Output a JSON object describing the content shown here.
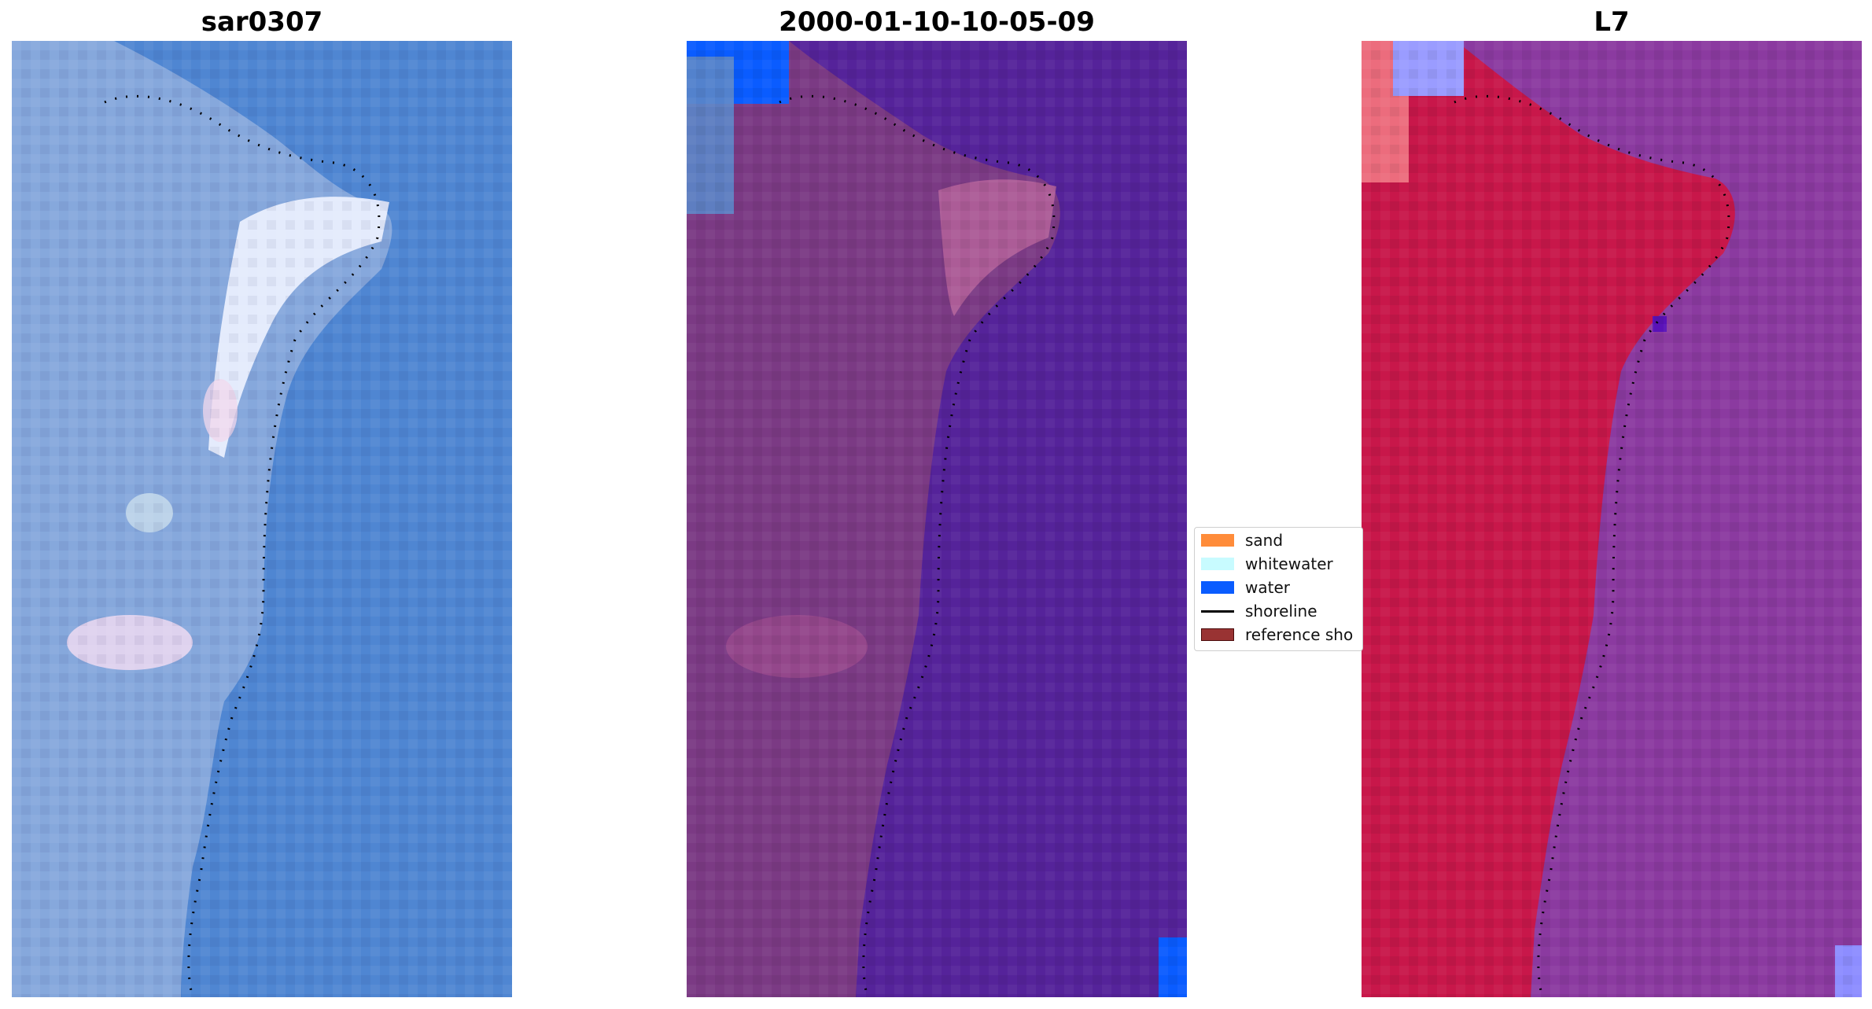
{
  "panels": [
    {
      "title": "sar0307",
      "style": "sar"
    },
    {
      "title": "2000-01-10-10-05-09",
      "style": "classified"
    },
    {
      "title": "L7",
      "style": "index"
    }
  ],
  "legend": {
    "items": [
      {
        "label": "sand",
        "color": "#ff8c3a",
        "type": "patch"
      },
      {
        "label": "whitewater",
        "color": "#c8fbff",
        "type": "patch"
      },
      {
        "label": "water",
        "color": "#0a5cff",
        "type": "patch"
      },
      {
        "label": "shoreline",
        "color": "#000000",
        "type": "line"
      },
      {
        "label": "reference sho",
        "color": "#993333",
        "type": "patch"
      }
    ]
  },
  "colors": {
    "sar_sea": "#4f86d2",
    "sar_land": "#86a8dc",
    "sar_bright": "#eef2ff",
    "classified_sea": "#55239a",
    "classified_land": "#7b3a84",
    "classified_water": "#0a5cff",
    "index_sea": "#8b3aa0",
    "index_land": "#c8174a",
    "index_water": "#9a9cff"
  }
}
